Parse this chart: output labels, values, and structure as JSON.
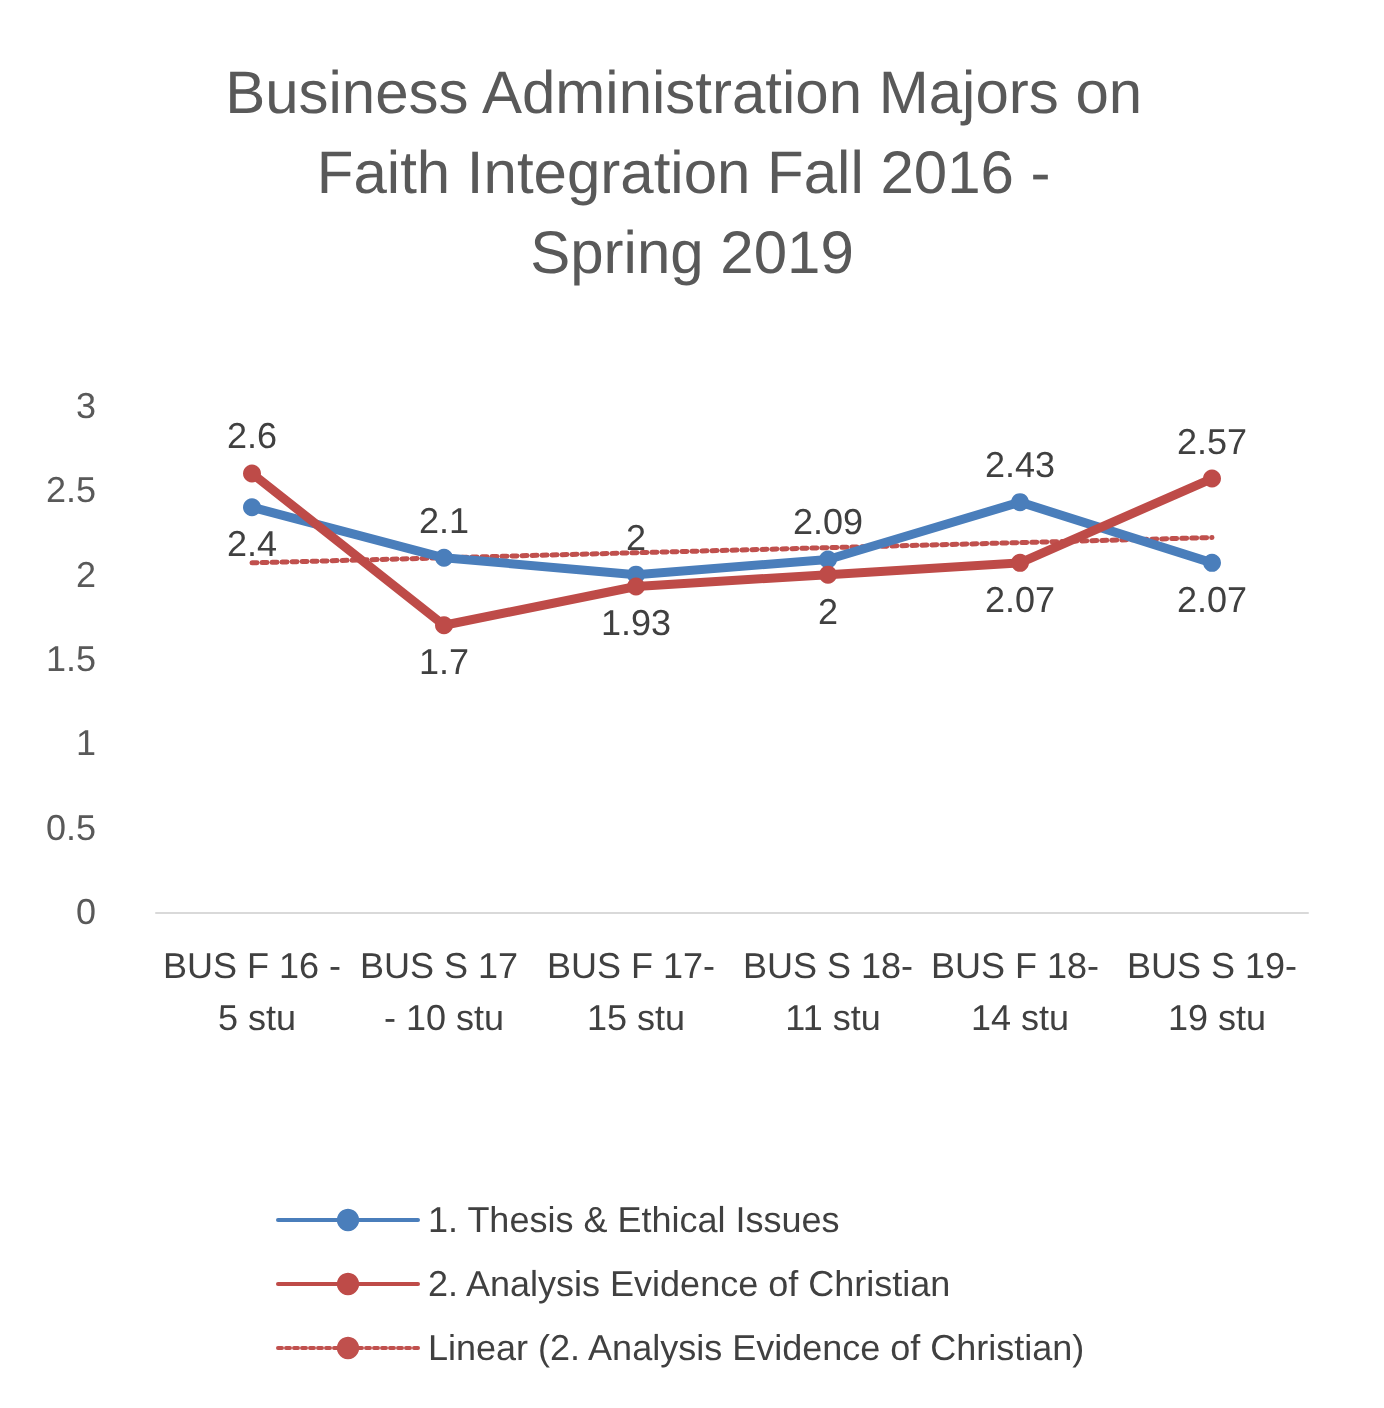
{
  "chart_data": {
    "type": "line",
    "title": "Business Administration Majors on Faith Integration Fall 2016 - Spring 2019",
    "categories": [
      "BUS F 16 - 5 stu",
      "BUS S 17 - 10 stu",
      "BUS F 17- 15 stu",
      "BUS S 18- 11 stu",
      "BUS F 18- 14 stu",
      "BUS S 19- 19 stu"
    ],
    "series": [
      {
        "name": "1. Thesis & Ethical Issues",
        "color": "#4a7ebb",
        "values": [
          2.4,
          2.1,
          2,
          2.09,
          2.43,
          2.07
        ],
        "marker": "circle",
        "line_style": "solid",
        "data_labels": true
      },
      {
        "name": "2. Analysis Evidence of Christian",
        "color": "#be4b48",
        "values": [
          2.6,
          1.7,
          1.93,
          2,
          2.07,
          2.57
        ],
        "marker": "circle",
        "line_style": "solid",
        "data_labels": true
      },
      {
        "name": "Linear (2. Analysis Evidence of Christian)",
        "color": "#c0504d",
        "values": [
          2.07,
          2.1,
          2.13,
          2.16,
          2.19,
          2.22
        ],
        "marker": "none",
        "line_style": "dotted"
      }
    ],
    "ylim": [
      0,
      3
    ],
    "yticks": [
      0,
      0.5,
      1,
      1.5,
      2,
      2.5,
      3
    ],
    "grid": false,
    "legend": "bottom"
  }
}
